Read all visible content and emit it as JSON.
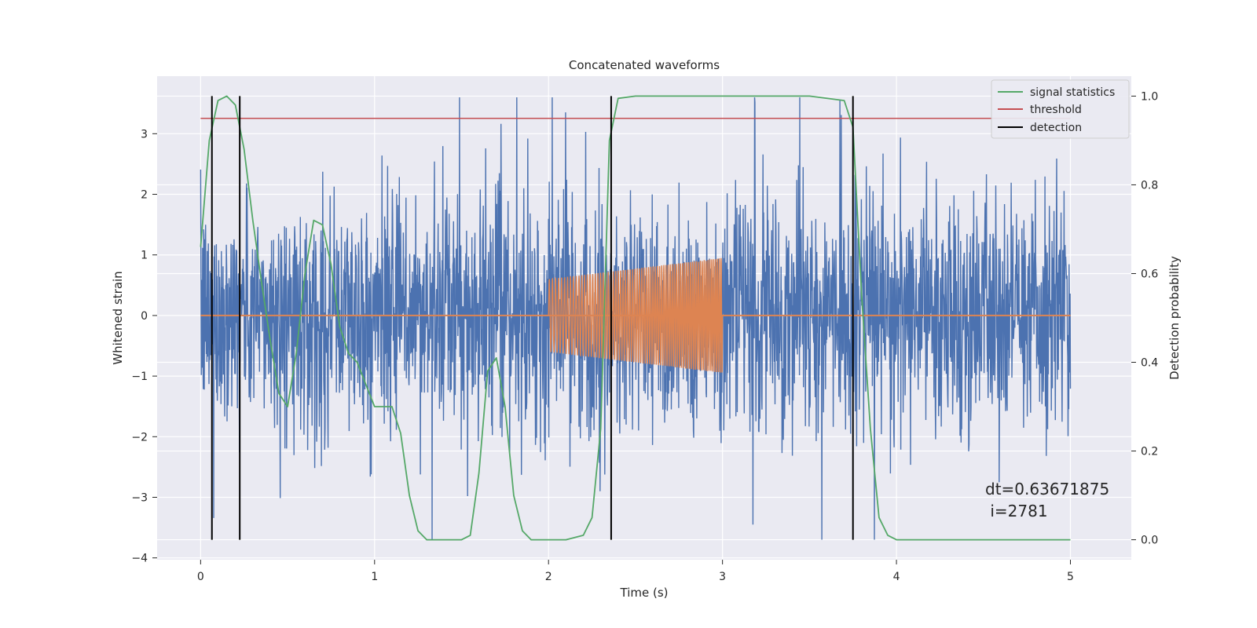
{
  "chart_data": {
    "type": "line",
    "title": "Concatenated waveforms",
    "xlabel": "Time (s)",
    "ylabel": "Whitened strain",
    "ylabel_right": "Detection probability",
    "xlim": [
      -0.25,
      5.35
    ],
    "ylim": [
      -4.03,
      3.95
    ],
    "ylim_right": [
      -0.045,
      1.045
    ],
    "x_ticks": [
      0,
      1,
      2,
      3,
      4,
      5
    ],
    "y_ticks": [
      -4,
      -3,
      -2,
      -1,
      0,
      1,
      2,
      3
    ],
    "y_ticks_right": [
      0.0,
      0.2,
      0.4,
      0.6,
      0.8,
      1.0
    ],
    "x_tick_labels": [
      "0",
      "1",
      "2",
      "3",
      "4",
      "5"
    ],
    "y_tick_labels": [
      "−4",
      "−3",
      "−2",
      "−1",
      "0",
      "1",
      "2",
      "3"
    ],
    "y_tick_labels_right": [
      "0.0",
      "0.2",
      "0.4",
      "0.6",
      "0.8",
      "1.0"
    ],
    "grid": true,
    "legend_position": "top-right",
    "series": [
      {
        "name": "",
        "kind": "noise",
        "color": "#4c72b0",
        "x_range": [
          0,
          5
        ],
        "amplitude_envelope": [
          [
            0,
            1.4
          ],
          [
            1.4,
            1.5
          ],
          [
            2.3,
            1.6
          ],
          [
            3.0,
            1.5
          ],
          [
            5.0,
            1.5
          ]
        ],
        "peak_max": 3.6,
        "peak_min": -3.7
      },
      {
        "name": "",
        "kind": "chirp",
        "color": "#dd8452",
        "baseline_x": [
          0,
          5
        ],
        "x_range": [
          2.0,
          3.0
        ],
        "amplitude": [
          0.6,
          0.95
        ]
      },
      {
        "name": "signal statistics",
        "color": "#55a868",
        "axis": "right",
        "x": [
          0.0,
          0.05,
          0.1,
          0.15,
          0.2,
          0.25,
          0.3,
          0.35,
          0.4,
          0.45,
          0.5,
          0.55,
          0.6,
          0.65,
          0.7,
          0.75,
          0.8,
          0.85,
          0.9,
          0.95,
          1.0,
          1.05,
          1.1,
          1.15,
          1.2,
          1.25,
          1.3,
          1.4,
          1.5,
          1.55,
          1.6,
          1.65,
          1.7,
          1.75,
          1.8,
          1.85,
          1.9,
          2.0,
          2.1,
          2.2,
          2.25,
          2.3,
          2.35,
          2.4,
          2.5,
          3.0,
          3.5,
          3.7,
          3.75,
          3.8,
          3.85,
          3.9,
          3.95,
          4.0,
          4.5,
          5.0
        ],
        "y": [
          0.66,
          0.9,
          0.99,
          1.0,
          0.98,
          0.88,
          0.72,
          0.58,
          0.45,
          0.33,
          0.3,
          0.42,
          0.6,
          0.72,
          0.71,
          0.62,
          0.48,
          0.42,
          0.4,
          0.35,
          0.3,
          0.3,
          0.3,
          0.24,
          0.1,
          0.02,
          0.0,
          0.0,
          0.0,
          0.01,
          0.15,
          0.38,
          0.41,
          0.3,
          0.1,
          0.02,
          0.0,
          0.0,
          0.0,
          0.01,
          0.05,
          0.25,
          0.9,
          0.995,
          1.0,
          1.0,
          1.0,
          0.99,
          0.93,
          0.55,
          0.25,
          0.05,
          0.01,
          0.0,
          0.0,
          0.0
        ]
      },
      {
        "name": "threshold",
        "color": "#c44e52",
        "axis": "right",
        "x": [
          0,
          5
        ],
        "y": [
          0.95,
          0.95
        ]
      },
      {
        "name": "detection",
        "color": "#000000",
        "axis": "right",
        "kind": "vlines",
        "x": [
          0.065,
          0.225,
          2.36,
          3.75
        ],
        "y_range": [
          0.0,
          1.0
        ]
      }
    ],
    "annotations": [
      "dt=0.63671875",
      " i=2781"
    ]
  }
}
